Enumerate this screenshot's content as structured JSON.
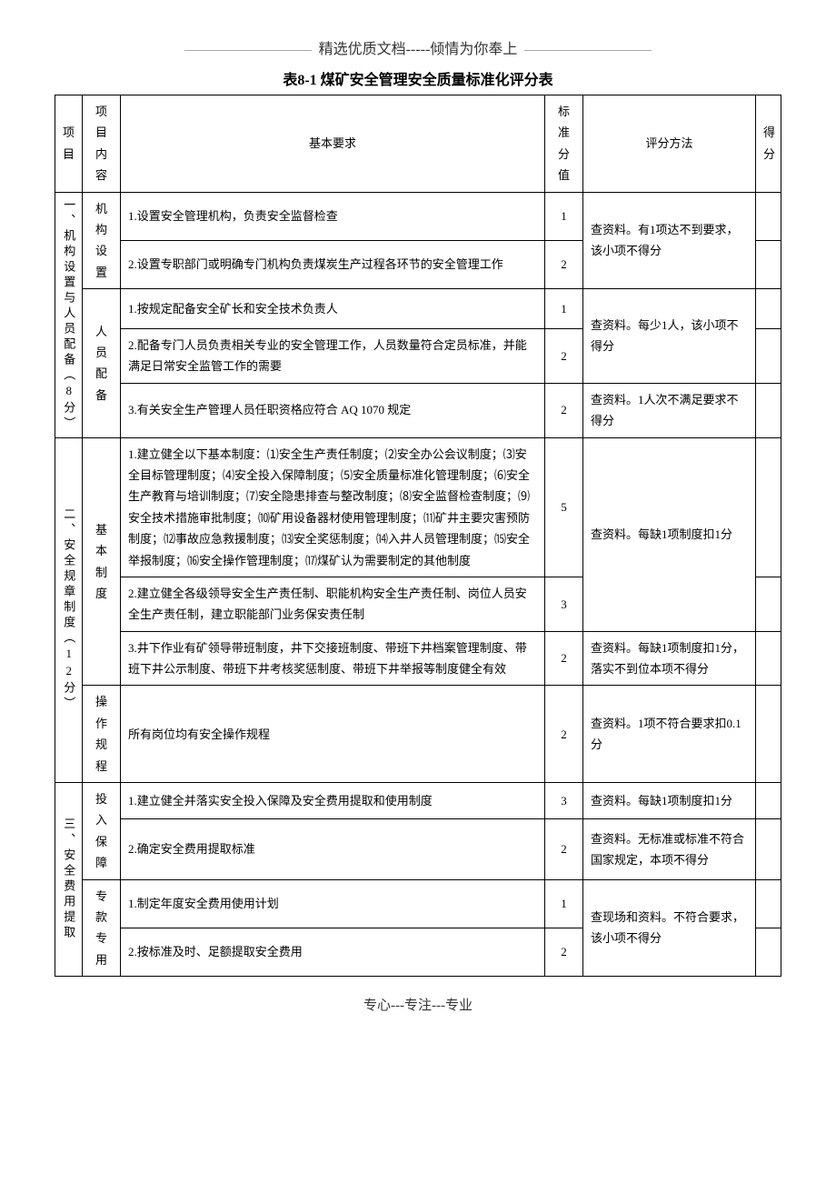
{
  "header": "精选优质文档-----倾情为你奉上",
  "footer": "专心---专注---专业",
  "title": "表8-1 煤矿安全管理安全质量标准化评分表",
  "columns": {
    "project": "项目",
    "content": "项目内容",
    "requirement": "基本要求",
    "std_score": "标准分值",
    "method": "评分方法",
    "score": "得分"
  },
  "sections": [
    {
      "project": "一、机构设置与人员配备（8分）",
      "groups": [
        {
          "content": "机构设置",
          "rows": [
            {
              "req": "1.设置安全管理机构，负责安全监督检查",
              "score": "1"
            },
            {
              "req": "2.设置专职部门或明确专门机构负责煤炭生产过程各环节的安全管理工作",
              "score": "2"
            }
          ],
          "method": "查资料。有1项达不到要求，该小项不得分"
        },
        {
          "content": "人员配备",
          "rows": [
            {
              "req": "1.按规定配备安全矿长和安全技术负责人",
              "score": "1"
            },
            {
              "req": "2.配备专门人员负责相关专业的安全管理工作，人员数量符合定员标准，并能满足日常安全监管工作的需要",
              "score": "2"
            }
          ],
          "method": "查资料。每少1人，该小项不得分",
          "extra_rows": [
            {
              "req": "3.有关安全生产管理人员任职资格应符合 AQ 1070 规定",
              "score": "2",
              "method": "查资料。1人次不满足要求不得分"
            }
          ]
        }
      ]
    },
    {
      "project": "二、安全规章制度（12分）",
      "groups": [
        {
          "content": "基本制度",
          "rows": [
            {
              "req": "1.建立健全以下基本制度：⑴安全生产责任制度；⑵安全办公会议制度；⑶安全目标管理制度；⑷安全投入保障制度；⑸安全质量标准化管理制度；⑹安全生产教育与培训制度；⑺安全隐患排查与整改制度；⑻安全监督检查制度；⑼安全技术措施审批制度；⑽矿用设备器材使用管理制度；⑾矿井主要灾害预防制度；⑿事故应急救援制度；⒀安全奖惩制度；⒁入井人员管理制度；⒂安全举报制度；⒃安全操作管理制度；⒄煤矿认为需要制定的其他制度",
              "score": "5"
            },
            {
              "req": "2.建立健全各级领导安全生产责任制、职能机构安全生产责任制、岗位人员安全生产责任制，建立职能部门业务保安责任制",
              "score": "3"
            }
          ],
          "method": "查资料。每缺1项制度扣1分",
          "extra_rows": [
            {
              "req": "3.井下作业有矿领导带班制度，井下交接班制度、带班下井档案管理制度、带班下井公示制度、带班下井考核奖惩制度、带班下井举报等制度健全有效",
              "score": "2",
              "method": "查资料。每缺1项制度扣1分，落实不到位本项不得分"
            }
          ]
        },
        {
          "content": "操作规程",
          "rows": [
            {
              "req": "所有岗位均有安全操作规程",
              "score": "2"
            }
          ],
          "method": "查资料。1项不符合要求扣0.1分"
        }
      ]
    },
    {
      "project": "三、安全费用提取",
      "groups": [
        {
          "content": "投入保障",
          "rows": [
            {
              "req": "1.建立健全并落实安全投入保障及安全费用提取和使用制度",
              "score": "3",
              "method": "查资料。每缺1项制度扣1分"
            },
            {
              "req": "2.确定安全费用提取标准",
              "score": "2",
              "method": "查资料。无标准或标准不符合国家规定，本项不得分"
            }
          ]
        },
        {
          "content": "专款专用",
          "rows": [
            {
              "req": "1.制定年度安全费用使用计划",
              "score": "1"
            },
            {
              "req": "2.按标准及时、足额提取安全费用",
              "score": "2"
            }
          ],
          "method": "查现场和资料。不符合要求，该小项不得分"
        }
      ]
    }
  ]
}
